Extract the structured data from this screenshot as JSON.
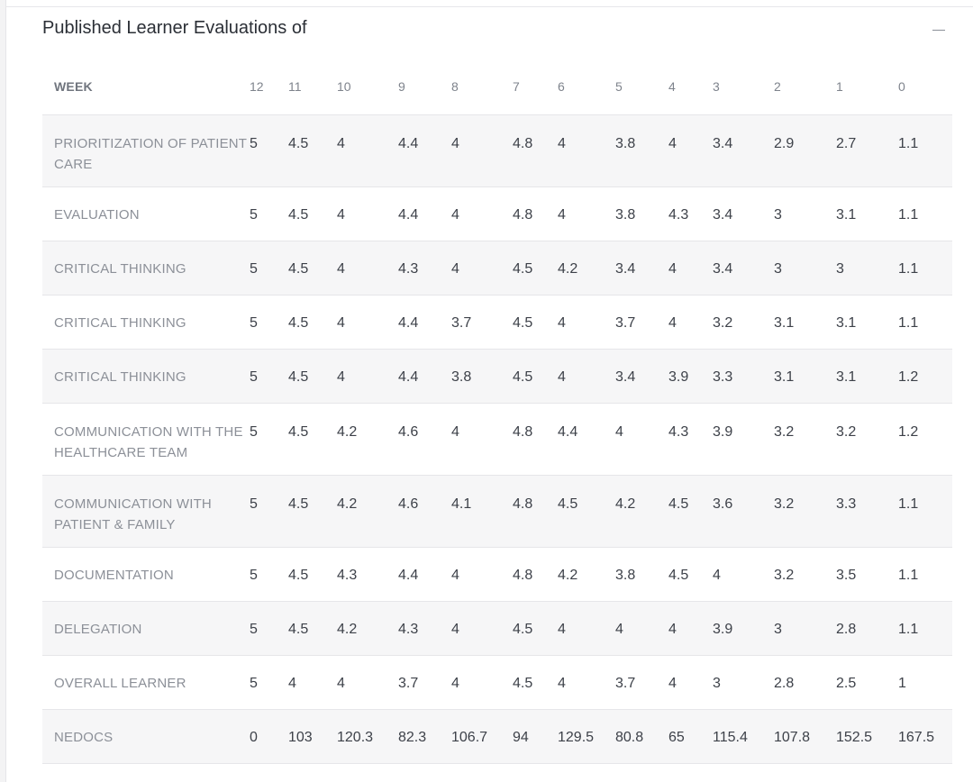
{
  "panel": {
    "title": "Published Learner Evaluations of"
  },
  "table": {
    "week_label": "WEEK",
    "weeks": [
      "12",
      "11",
      "10",
      "9",
      "8",
      "7",
      "6",
      "5",
      "4",
      "3",
      "2",
      "1",
      "0"
    ],
    "rows": [
      {
        "label": "PRIORITIZATION OF PATIENT CARE",
        "values": [
          "5",
          "4.5",
          "4",
          "4.4",
          "4",
          "4.8",
          "4",
          "3.8",
          "4",
          "3.4",
          "2.9",
          "2.7",
          "1.1"
        ]
      },
      {
        "label": "EVALUATION",
        "values": [
          "5",
          "4.5",
          "4",
          "4.4",
          "4",
          "4.8",
          "4",
          "3.8",
          "4.3",
          "3.4",
          "3",
          "3.1",
          "1.1"
        ]
      },
      {
        "label": "CRITICAL THINKING",
        "values": [
          "5",
          "4.5",
          "4",
          "4.3",
          "4",
          "4.5",
          "4.2",
          "3.4",
          "4",
          "3.4",
          "3",
          "3",
          "1.1"
        ]
      },
      {
        "label": "CRITICAL THINKING",
        "values": [
          "5",
          "4.5",
          "4",
          "4.4",
          "3.7",
          "4.5",
          "4",
          "3.7",
          "4",
          "3.2",
          "3.1",
          "3.1",
          "1.1"
        ]
      },
      {
        "label": "CRITICAL THINKING",
        "values": [
          "5",
          "4.5",
          "4",
          "4.4",
          "3.8",
          "4.5",
          "4",
          "3.4",
          "3.9",
          "3.3",
          "3.1",
          "3.1",
          "1.2"
        ]
      },
      {
        "label": "COMMUNICATION WITH THE HEALTHCARE TEAM",
        "values": [
          "5",
          "4.5",
          "4.2",
          "4.6",
          "4",
          "4.8",
          "4.4",
          "4",
          "4.3",
          "3.9",
          "3.2",
          "3.2",
          "1.2"
        ]
      },
      {
        "label": "COMMUNICATION WITH PATIENT & FAMILY",
        "values": [
          "5",
          "4.5",
          "4.2",
          "4.6",
          "4.1",
          "4.8",
          "4.5",
          "4.2",
          "4.5",
          "3.6",
          "3.2",
          "3.3",
          "1.1"
        ]
      },
      {
        "label": "DOCUMENTATION",
        "values": [
          "5",
          "4.5",
          "4.3",
          "4.4",
          "4",
          "4.8",
          "4.2",
          "3.8",
          "4.5",
          "4",
          "3.2",
          "3.5",
          "1.1"
        ]
      },
      {
        "label": "DELEGATION",
        "values": [
          "5",
          "4.5",
          "4.2",
          "4.3",
          "4",
          "4.5",
          "4",
          "4",
          "4",
          "3.9",
          "3",
          "2.8",
          "1.1"
        ]
      },
      {
        "label": "OVERALL LEARNER",
        "values": [
          "5",
          "4",
          "4",
          "3.7",
          "4",
          "4.5",
          "4",
          "3.7",
          "4",
          "3",
          "2.8",
          "2.5",
          "1"
        ]
      },
      {
        "label": "NEDOCS",
        "values": [
          "0",
          "103",
          "120.3",
          "82.3",
          "106.7",
          "94",
          "129.5",
          "80.8",
          "65",
          "115.4",
          "107.8",
          "152.5",
          "167.5"
        ]
      }
    ]
  },
  "colors": {
    "shaded_row": "#f6f6f7",
    "border": "#e6e6e9",
    "label_text": "#8c9098",
    "value_text": "#3d4149"
  }
}
